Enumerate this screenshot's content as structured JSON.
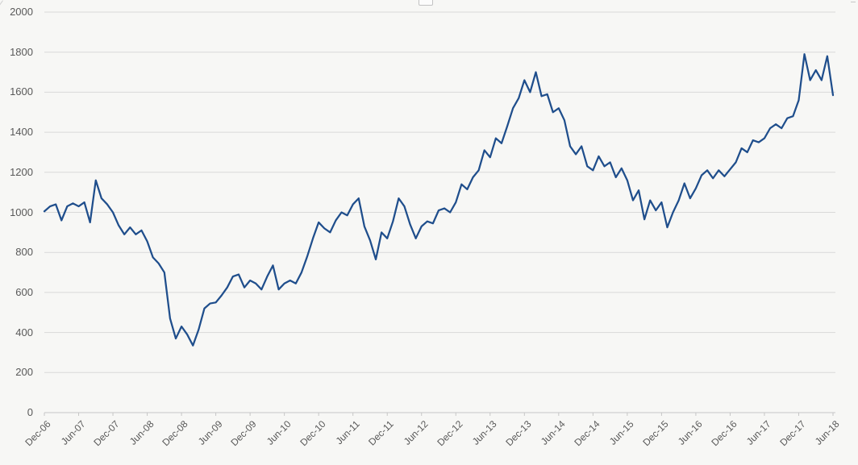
{
  "chart_data": {
    "type": "line",
    "title": "",
    "xlabel": "",
    "ylabel": "",
    "legend": "none",
    "grid": "horizontal",
    "ylim": [
      0,
      2000
    ],
    "y_tick_values": [
      0,
      200,
      400,
      600,
      800,
      1000,
      1200,
      1400,
      1600,
      1800,
      2000
    ],
    "x_tick_labels": [
      "Dec-06",
      "Jun-07",
      "Dec-07",
      "Jun-08",
      "Dec-08",
      "Jun-09",
      "Dec-09",
      "Jun-10",
      "Dec-10",
      "Jun-11",
      "Dec-11",
      "Jun-12",
      "Dec-12",
      "Jun-13",
      "Dec-13",
      "Jun-14",
      "Dec-14",
      "Jun-15",
      "Dec-15",
      "Jun-16",
      "Dec-16",
      "Jun-17",
      "Dec-17",
      "Jun-18"
    ],
    "x_start": "Dec-06",
    "x_end": "Jun-18",
    "x_interval": "monthly",
    "series": [
      {
        "name": "index-level",
        "color": "#1f4e8c",
        "values": [
          1005,
          1030,
          1040,
          960,
          1030,
          1045,
          1030,
          1050,
          950,
          1160,
          1070,
          1040,
          1000,
          935,
          890,
          925,
          890,
          910,
          855,
          775,
          745,
          700,
          470,
          370,
          430,
          390,
          335,
          415,
          520,
          545,
          550,
          585,
          625,
          680,
          690,
          625,
          660,
          645,
          615,
          680,
          735,
          615,
          645,
          660,
          645,
          700,
          780,
          870,
          950,
          920,
          900,
          960,
          1000,
          985,
          1040,
          1070,
          930,
          860,
          765,
          900,
          870,
          955,
          1070,
          1030,
          940,
          870,
          930,
          955,
          945,
          1010,
          1020,
          1000,
          1050,
          1140,
          1115,
          1175,
          1210,
          1310,
          1275,
          1370,
          1345,
          1430,
          1520,
          1570,
          1660,
          1600,
          1700,
          1580,
          1590,
          1500,
          1520,
          1460,
          1330,
          1290,
          1330,
          1230,
          1210,
          1280,
          1230,
          1250,
          1175,
          1220,
          1160,
          1060,
          1110,
          965,
          1060,
          1010,
          1050,
          925,
          1000,
          1060,
          1145,
          1070,
          1120,
          1185,
          1210,
          1170,
          1210,
          1180,
          1215,
          1250,
          1320,
          1300,
          1360,
          1350,
          1370,
          1420,
          1440,
          1420,
          1470,
          1480,
          1560,
          1790,
          1660,
          1710,
          1660,
          1780,
          1585
        ]
      }
    ]
  },
  "colors": {
    "background": "#f7f7f5",
    "gridline": "#d9d9d9",
    "axis_line": "#c6c6c6",
    "tick_mark": "#c6c6c6",
    "tick_label": "#595959",
    "series_line": "#1f4e8c"
  }
}
